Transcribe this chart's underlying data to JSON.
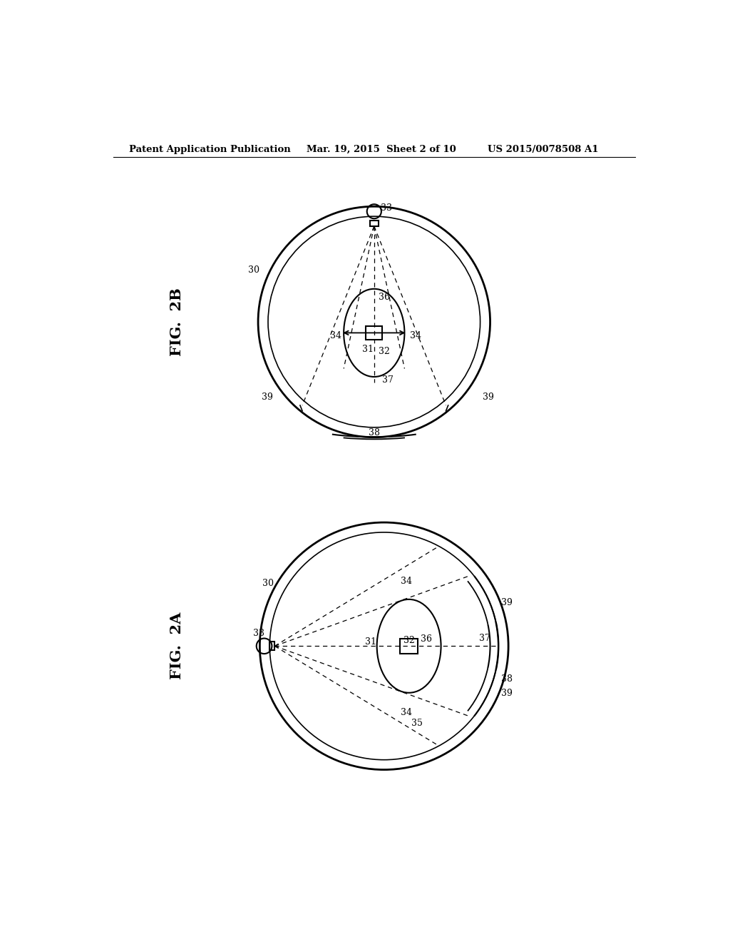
{
  "background_color": "#ffffff",
  "header_left": "Patent Application Publication",
  "header_mid": "Mar. 19, 2015  Sheet 2 of 10",
  "header_right": "US 2015/0078508 A1",
  "header_fontsize": 9.5,
  "fig_label_2B": "FIG.  2B",
  "fig_label_2A": "FIG.  2A",
  "fig_label_fontsize": 15,
  "line_color": "black",
  "bg": "#ffffff"
}
